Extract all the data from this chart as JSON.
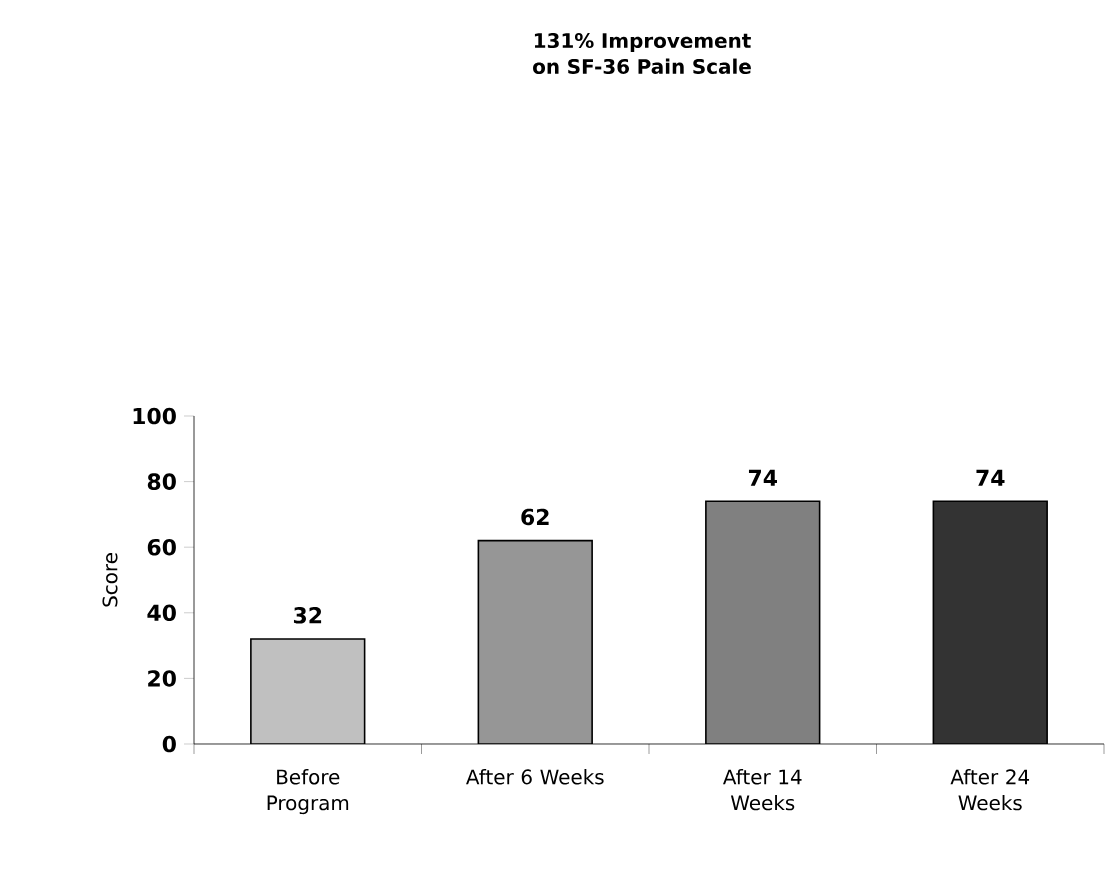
{
  "chart_data": {
    "type": "bar",
    "title": "131% Improvement on SF-36 Pain Scale",
    "ylabel": "Score",
    "categories": [
      "Before Program",
      "After 6 Weeks",
      "After 14 Weeks",
      "After 24 Weeks"
    ],
    "values": [
      32,
      62,
      74,
      74
    ],
    "colors": [
      "#c0c0c0",
      "#969696",
      "#808080",
      "#333333"
    ],
    "ylim": [
      0,
      100
    ],
    "yticks": [
      0,
      20,
      40,
      60,
      80,
      100
    ],
    "data_labels": true
  }
}
